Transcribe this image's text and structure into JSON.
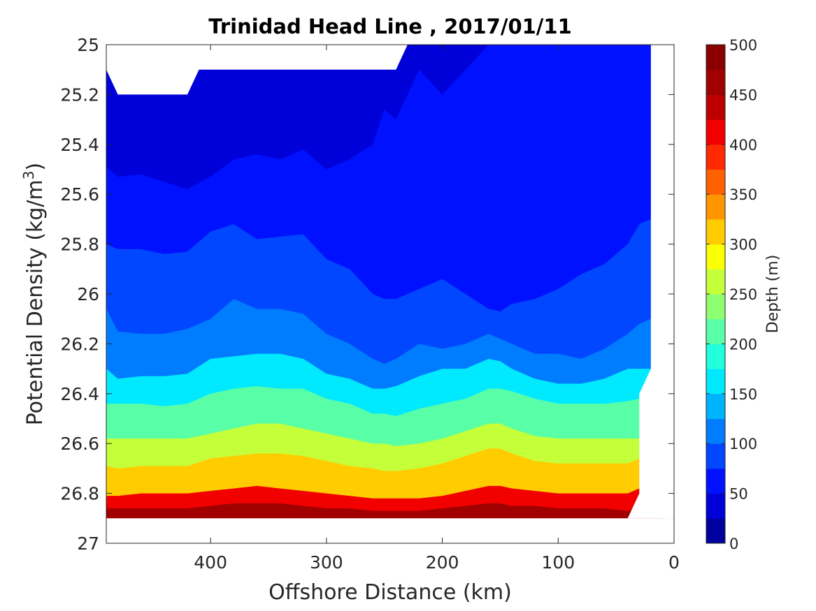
{
  "chart_data": {
    "type": "filled-contour",
    "title": "Trinidad Head Line , 2017/01/11",
    "xlabel": "Offshore Distance (km)",
    "ylabel": "Potential Density (kg/m",
    "ylabel_sup": "3",
    "ylabel_close": ")",
    "xlim": [
      490,
      0
    ],
    "x_reversed": true,
    "ylim": [
      25,
      27
    ],
    "y_reversed": true,
    "x_ticks": [
      400,
      300,
      200,
      100,
      0
    ],
    "x_tick_labels": [
      "400",
      "300",
      "200",
      "100",
      "0"
    ],
    "y_ticks": [
      25,
      25.2,
      25.4,
      25.6,
      25.8,
      26,
      26.2,
      26.4,
      26.6,
      26.8,
      27
    ],
    "y_tick_labels": [
      "25",
      "25.2",
      "25.4",
      "25.6",
      "25.8",
      "26",
      "26.2",
      "26.4",
      "26.6",
      "26.8",
      "27"
    ],
    "grid": false,
    "colorbar": {
      "label": "Depth (m)",
      "range": [
        0,
        500
      ],
      "ticks": [
        0,
        50,
        100,
        150,
        200,
        250,
        300,
        350,
        400,
        450,
        500
      ],
      "tick_labels": [
        "0",
        "50",
        "100",
        "150",
        "200",
        "250",
        "300",
        "350",
        "400",
        "450",
        "500"
      ],
      "levels": [
        0,
        25,
        50,
        75,
        100,
        125,
        150,
        175,
        200,
        225,
        250,
        275,
        300,
        325,
        350,
        375,
        400,
        425,
        450,
        475,
        500
      ],
      "colormap": "jet",
      "colors": [
        "#00009f",
        "#0000d8",
        "#0011ff",
        "#0047ff",
        "#007dff",
        "#00b3ff",
        "#00e9ff",
        "#22ffdc",
        "#58ffa6",
        "#8eff70",
        "#c4ff3a",
        "#faff04",
        "#ffcc00",
        "#ff9600",
        "#ff6000",
        "#ff2a00",
        "#f20000",
        "#bc0000",
        "#a00000",
        "#8a0000"
      ]
    },
    "contour_x": [
      490,
      480,
      460,
      440,
      420,
      400,
      380,
      360,
      340,
      320,
      300,
      280,
      260,
      250,
      240,
      220,
      200,
      180,
      160,
      150,
      140,
      120,
      100,
      80,
      60,
      40,
      30,
      20
    ],
    "depth_isolines": [
      {
        "level": 25,
        "density": [
          25.25,
          25.24,
          25.24,
          25.23,
          25.24,
          25.25,
          25.22,
          25.2,
          25.18,
          25.18,
          25.2,
          25.16,
          25.04,
          25.0,
          25.03,
          25.0,
          25.0,
          25.0,
          25.0,
          25.0,
          25.0,
          25.0,
          25.0,
          25.0,
          25.0,
          25.0,
          25.0,
          25.0
        ]
      },
      {
        "level": 50,
        "density": [
          25.49,
          25.53,
          25.52,
          25.55,
          25.58,
          25.53,
          25.46,
          25.44,
          25.46,
          25.42,
          25.5,
          25.46,
          25.4,
          25.26,
          25.3,
          25.1,
          25.2,
          25.1,
          25.0,
          25.0,
          25.0,
          25.0,
          25.0,
          25.0,
          25.0,
          25.0,
          25.0,
          25.0
        ]
      },
      {
        "level": 75,
        "density": [
          25.8,
          25.82,
          25.82,
          25.84,
          25.83,
          25.75,
          25.72,
          25.78,
          25.77,
          25.76,
          25.86,
          25.9,
          26.0,
          26.02,
          26.02,
          25.98,
          25.94,
          26.0,
          26.06,
          26.07,
          26.04,
          26.02,
          25.98,
          25.92,
          25.88,
          25.8,
          25.72,
          25.7
        ]
      },
      {
        "level": 100,
        "density": [
          26.06,
          26.15,
          26.16,
          26.16,
          26.14,
          26.1,
          26.02,
          26.06,
          26.06,
          26.08,
          26.16,
          26.2,
          26.26,
          26.28,
          26.26,
          26.2,
          26.22,
          26.2,
          26.16,
          26.18,
          26.2,
          26.24,
          26.24,
          26.26,
          26.22,
          26.16,
          26.12,
          26.1
        ]
      },
      {
        "level": 150,
        "density": [
          26.3,
          26.34,
          26.33,
          26.33,
          26.32,
          26.26,
          26.25,
          26.24,
          26.24,
          26.26,
          26.32,
          26.34,
          26.38,
          26.38,
          26.37,
          26.33,
          26.3,
          26.3,
          26.26,
          26.27,
          26.3,
          26.34,
          26.36,
          26.36,
          26.34,
          26.3,
          26.3,
          26.3
        ]
      },
      {
        "level": 200,
        "density": [
          26.44,
          26.44,
          26.44,
          26.45,
          26.44,
          26.4,
          26.38,
          26.37,
          26.38,
          26.38,
          26.42,
          26.44,
          26.48,
          26.48,
          26.49,
          26.46,
          26.44,
          26.42,
          26.38,
          26.38,
          26.39,
          26.42,
          26.44,
          26.44,
          26.44,
          26.43,
          26.42,
          26.42
        ]
      },
      {
        "level": 250,
        "density": [
          26.58,
          26.58,
          26.58,
          26.58,
          26.58,
          26.56,
          26.54,
          26.52,
          26.52,
          26.54,
          26.56,
          26.58,
          26.6,
          26.6,
          26.61,
          26.6,
          26.58,
          26.55,
          26.52,
          26.52,
          26.54,
          26.57,
          26.58,
          26.58,
          26.58,
          26.58,
          26.58,
          26.58
        ]
      },
      {
        "level": 300,
        "density": [
          26.69,
          26.7,
          26.69,
          26.69,
          26.69,
          26.66,
          26.65,
          26.64,
          26.64,
          26.65,
          26.67,
          26.69,
          26.7,
          26.71,
          26.71,
          26.7,
          26.68,
          26.65,
          26.62,
          26.62,
          26.64,
          26.67,
          26.68,
          26.68,
          26.68,
          26.68,
          26.66,
          26.66
        ]
      },
      {
        "level": 400,
        "density": [
          26.81,
          26.81,
          26.8,
          26.8,
          26.8,
          26.79,
          26.78,
          26.77,
          26.78,
          26.79,
          26.8,
          26.81,
          26.82,
          26.82,
          26.82,
          26.82,
          26.81,
          26.79,
          26.77,
          26.77,
          26.78,
          26.79,
          26.8,
          26.8,
          26.8,
          26.8,
          26.78,
          26.78
        ]
      },
      {
        "level": 450,
        "density": [
          26.86,
          26.86,
          26.86,
          26.86,
          26.86,
          26.85,
          26.84,
          26.84,
          26.84,
          26.85,
          26.86,
          26.86,
          26.87,
          26.87,
          26.87,
          26.87,
          26.86,
          26.85,
          26.84,
          26.84,
          26.85,
          26.85,
          26.86,
          26.86,
          26.86,
          26.87,
          26.86,
          26.86
        ]
      }
    ],
    "no_data_regions": [
      {
        "name": "top-left",
        "x": [
          490,
          490,
          480,
          420,
          410,
          240,
          230,
          230
        ],
        "y": [
          25.0,
          25.1,
          25.2,
          25.2,
          25.1,
          25.1,
          25.0,
          25.0
        ]
      },
      {
        "name": "top-right-edge",
        "x": [
          20,
          0,
          0,
          20
        ],
        "y": [
          25.0,
          25.0,
          25.0,
          25.0
        ]
      },
      {
        "name": "right",
        "x": [
          20,
          20,
          30,
          30,
          40,
          0,
          0
        ],
        "y": [
          25.0,
          26.3,
          26.4,
          26.8,
          26.9,
          26.9,
          25.0
        ]
      },
      {
        "name": "bottom",
        "x": [
          490,
          0,
          0,
          490
        ],
        "y": [
          26.9,
          26.9,
          27.0,
          27.0
        ]
      }
    ]
  }
}
